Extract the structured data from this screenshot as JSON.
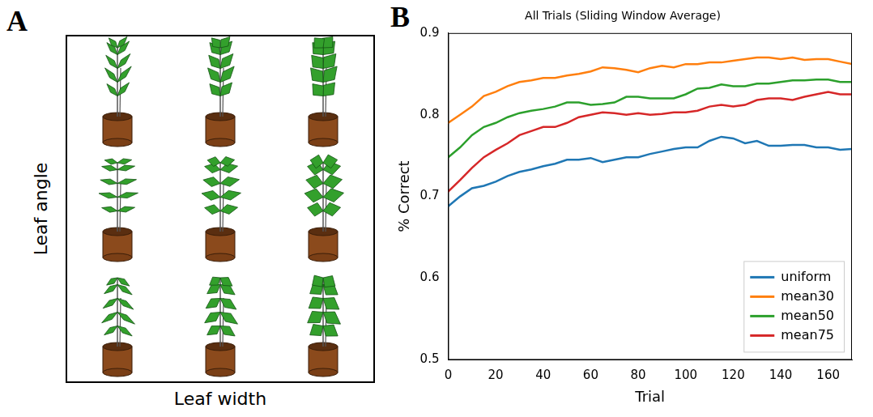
{
  "panel_a": {
    "panel_label": "A",
    "x_label": "Leaf width",
    "y_label": "Leaf angle"
  },
  "chart_data": {
    "type": "line",
    "panel_label": "B",
    "title": "All Trials (Sliding Window Average)",
    "x_label": "Trial",
    "y_label": "% Correct",
    "x": [
      0,
      5,
      10,
      15,
      20,
      25,
      30,
      35,
      40,
      45,
      50,
      55,
      60,
      65,
      70,
      75,
      80,
      85,
      90,
      95,
      100,
      105,
      110,
      115,
      120,
      125,
      130,
      135,
      140,
      145,
      150,
      155,
      160,
      165,
      170
    ],
    "series": [
      {
        "name": "uniform",
        "color": "#1f77b4",
        "values": [
          0.688,
          0.7,
          0.71,
          0.713,
          0.718,
          0.725,
          0.73,
          0.733,
          0.737,
          0.74,
          0.745,
          0.745,
          0.747,
          0.742,
          0.745,
          0.748,
          0.748,
          0.752,
          0.755,
          0.758,
          0.76,
          0.76,
          0.768,
          0.773,
          0.771,
          0.765,
          0.768,
          0.762,
          0.762,
          0.763,
          0.763,
          0.76,
          0.76,
          0.757,
          0.758
        ]
      },
      {
        "name": "mean30",
        "color": "#ff7f0e",
        "values": [
          0.79,
          0.8,
          0.81,
          0.823,
          0.828,
          0.835,
          0.84,
          0.842,
          0.845,
          0.845,
          0.848,
          0.85,
          0.853,
          0.858,
          0.857,
          0.855,
          0.852,
          0.857,
          0.86,
          0.858,
          0.862,
          0.862,
          0.864,
          0.864,
          0.866,
          0.868,
          0.87,
          0.87,
          0.868,
          0.87,
          0.867,
          0.868,
          0.868,
          0.865,
          0.862
        ]
      },
      {
        "name": "mean50",
        "color": "#2ca02c",
        "values": [
          0.748,
          0.76,
          0.775,
          0.785,
          0.79,
          0.797,
          0.802,
          0.805,
          0.807,
          0.81,
          0.815,
          0.815,
          0.812,
          0.813,
          0.815,
          0.822,
          0.822,
          0.82,
          0.82,
          0.82,
          0.825,
          0.832,
          0.833,
          0.837,
          0.835,
          0.835,
          0.838,
          0.838,
          0.84,
          0.842,
          0.842,
          0.843,
          0.843,
          0.84,
          0.84
        ]
      },
      {
        "name": "mean75",
        "color": "#d62728",
        "values": [
          0.706,
          0.72,
          0.735,
          0.748,
          0.757,
          0.765,
          0.775,
          0.78,
          0.785,
          0.785,
          0.79,
          0.797,
          0.8,
          0.803,
          0.802,
          0.8,
          0.802,
          0.8,
          0.801,
          0.803,
          0.803,
          0.805,
          0.81,
          0.812,
          0.81,
          0.812,
          0.818,
          0.82,
          0.82,
          0.818,
          0.822,
          0.825,
          0.828,
          0.825,
          0.825
        ]
      }
    ],
    "xlim": [
      0,
      170
    ],
    "xticks": [
      0,
      20,
      40,
      60,
      80,
      100,
      120,
      140,
      160
    ],
    "ylim": [
      0.5,
      0.9
    ],
    "yticks": [
      0.5,
      0.6,
      0.7,
      0.8,
      0.9
    ],
    "grid": false,
    "legend": "lower right"
  }
}
